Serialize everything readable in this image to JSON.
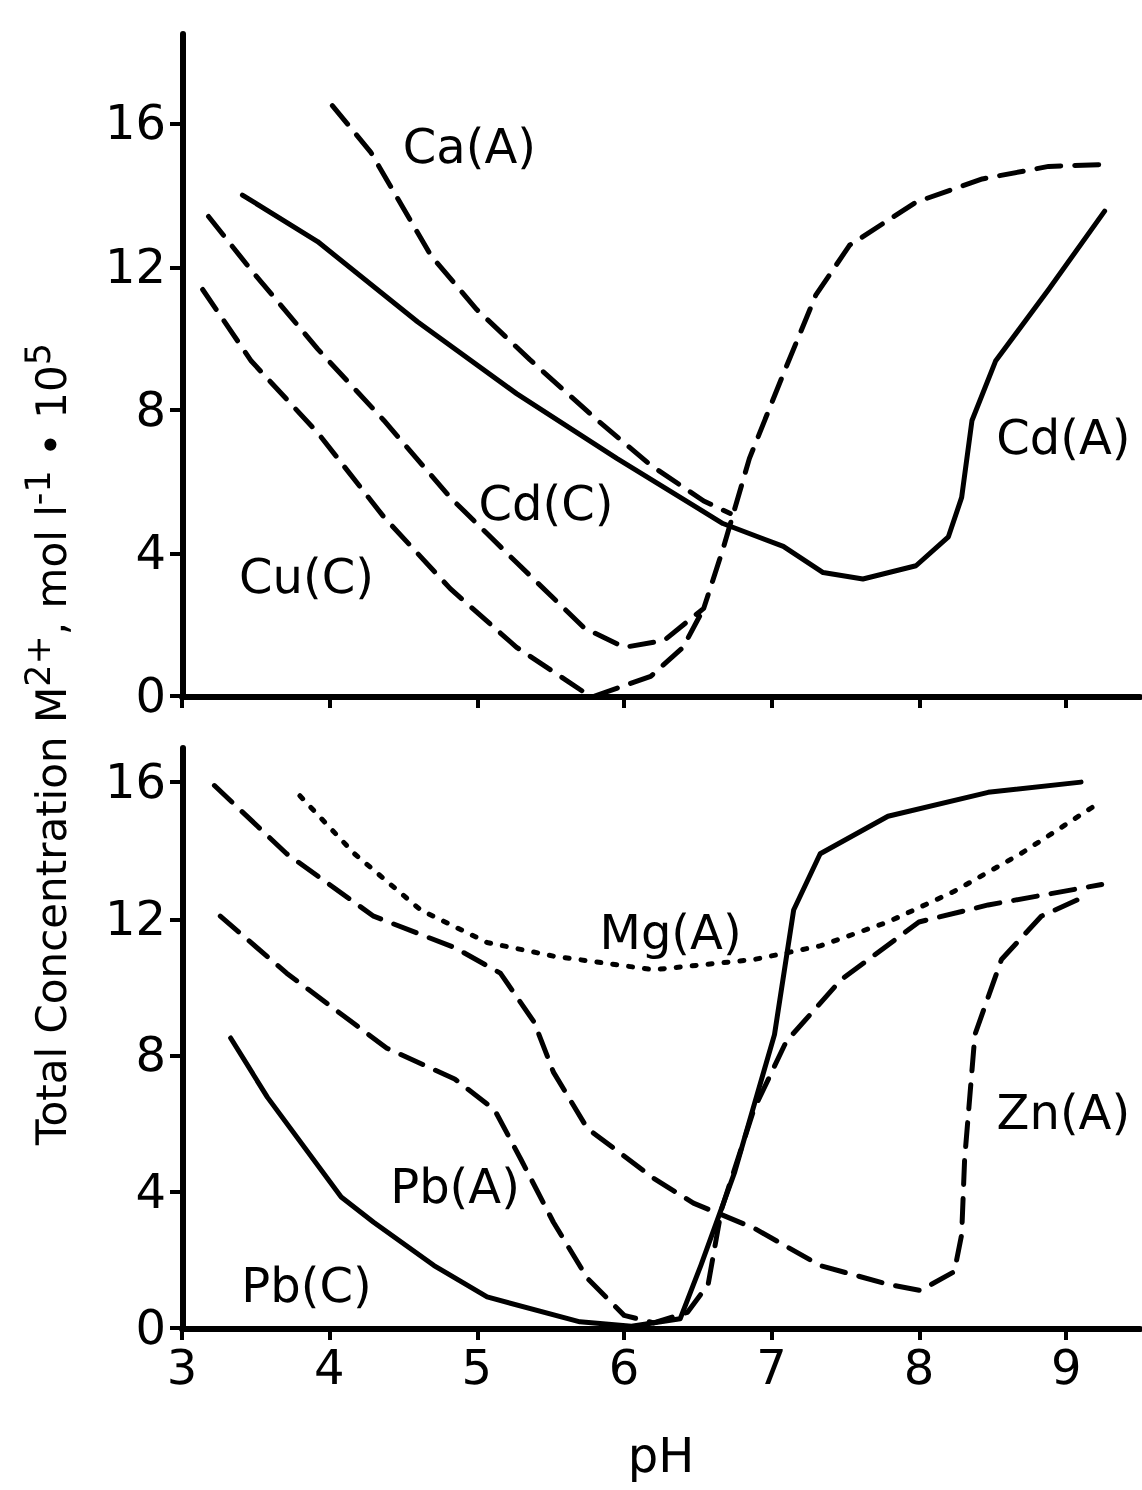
{
  "chart_data": [
    {
      "type": "line",
      "ylabel": "Total Concentration M$^{2+}$, mol l$^{-1}$ • 10$^{5}$",
      "xlim": [
        3,
        9.5
      ],
      "xticks": [
        {
          "value": 3,
          "label": null
        },
        {
          "value": 4,
          "label": null
        },
        {
          "value": 5,
          "label": null
        },
        {
          "value": 6,
          "label": null
        },
        {
          "value": 7,
          "label": null
        },
        {
          "value": 8,
          "label": null
        },
        {
          "value": 9,
          "label": null
        }
      ],
      "ylim": [
        0,
        18.5
      ],
      "yticks": [
        0,
        4,
        8,
        12,
        16
      ],
      "tick_labels": "y",
      "marker": "none",
      "series": [
        {
          "name": "Ca(A)",
          "color": "#000000",
          "line_style": "dashed",
          "x": [
            4.02,
            4.28,
            4.69,
            5.0,
            5.36,
            5.82,
            6.18,
            6.54,
            6.72
          ],
          "values": [
            16.5,
            15.2,
            12.3,
            10.8,
            9.4,
            7.7,
            6.45,
            5.45,
            5.1
          ]
        },
        {
          "name": "Cd(A)",
          "color": "#000000",
          "line_style": "solid",
          "x": [
            3.41,
            3.92,
            4.6,
            5.27,
            5.95,
            6.67,
            7.08,
            7.35,
            7.62,
            7.98,
            8.2,
            8.29,
            8.36,
            8.52,
            8.88,
            9.26
          ],
          "values": [
            14.0,
            12.7,
            10.45,
            8.45,
            6.64,
            4.82,
            4.18,
            3.45,
            3.27,
            3.64,
            4.45,
            5.55,
            7.7,
            9.36,
            11.36,
            13.55
          ]
        },
        {
          "name": "Cd(C)",
          "color": "#000000",
          "line_style": "dashed",
          "x": [
            3.18,
            3.47,
            3.92,
            4.37,
            4.82,
            5.27,
            5.73,
            6.0,
            6.27,
            6.54,
            6.67,
            6.85,
            7.08,
            7.3,
            7.53,
            7.98,
            8.43,
            8.88,
            9.24
          ],
          "values": [
            13.4,
            11.9,
            9.7,
            7.7,
            5.55,
            3.73,
            1.9,
            1.36,
            1.55,
            2.45,
            4.1,
            6.64,
            9.0,
            11.2,
            12.6,
            13.8,
            14.45,
            14.8,
            14.85
          ]
        },
        {
          "name": "Cu(C)",
          "color": "#000000",
          "line_style": "dashed",
          "x": [
            3.14,
            3.47,
            3.92,
            4.37,
            4.82,
            5.27,
            5.73,
            5.8,
            6.18,
            6.4,
            6.54
          ],
          "values": [
            11.36,
            9.36,
            7.36,
            5.0,
            3.0,
            1.36,
            0.1,
            0,
            0.55,
            1.36,
            2.45
          ]
        }
      ]
    },
    {
      "type": "line",
      "xlabel": "pH",
      "xlim": [
        3,
        9.5
      ],
      "xticks": [
        3,
        4,
        5,
        6,
        7,
        8,
        9
      ],
      "ylim": [
        0,
        17
      ],
      "yticks": [
        0,
        4,
        8,
        12,
        16
      ],
      "marker": "none",
      "series": [
        {
          "name": "Mg(A)",
          "color": "#000000",
          "line_style": "dotted",
          "x": [
            3.8,
            4.17,
            4.62,
            5.07,
            5.52,
            6.2,
            6.88,
            7.33,
            7.79,
            8.24,
            8.69,
            9.19
          ],
          "values": [
            15.6,
            13.9,
            12.25,
            11.3,
            10.9,
            10.5,
            10.8,
            11.2,
            11.9,
            12.8,
            13.9,
            15.3
          ]
        },
        {
          "name": "Zn(A)",
          "color": "#000000",
          "line_style": "dashed",
          "x": [
            3.22,
            3.71,
            4.3,
            4.85,
            5.16,
            5.39,
            5.52,
            5.75,
            6.2,
            6.47,
            6.88,
            7.33,
            7.79,
            8.01,
            8.24,
            8.29,
            8.31,
            8.38,
            8.56,
            8.83,
            9.1
          ],
          "values": [
            15.9,
            13.9,
            12.07,
            11.15,
            10.4,
            8.96,
            7.5,
            5.85,
            4.39,
            3.66,
            2.93,
            1.83,
            1.28,
            1.1,
            1.65,
            2.74,
            4.94,
            8.6,
            10.8,
            12.07,
            12.6
          ]
        },
        {
          "name": "Pb(A)",
          "color": "#000000",
          "line_style": "dashed",
          "x": [
            3.26,
            3.71,
            4.39,
            4.85,
            5.12,
            5.3,
            5.52,
            5.75,
            6.0,
            6.2,
            6.43,
            6.57,
            6.66,
            6.88,
            7.1,
            7.47,
            8.0,
            8.47,
            9.24
          ],
          "values": [
            12.07,
            10.4,
            8.2,
            7.3,
            6.4,
            4.94,
            3.1,
            1.46,
            0.37,
            0.15,
            0.46,
            1.28,
            3.47,
            6.4,
            8.4,
            10.2,
            11.9,
            12.4,
            13.0
          ]
        },
        {
          "name": "Pb(C)",
          "color": "#000000",
          "line_style": "solid",
          "x": [
            3.33,
            3.58,
            4.08,
            4.3,
            4.71,
            5.07,
            5.7,
            6.05,
            6.38,
            6.52,
            6.75,
            7.02,
            7.15,
            7.33,
            7.79,
            8.47,
            9.1
          ],
          "values": [
            8.5,
            6.76,
            3.84,
            3.1,
            1.83,
            0.91,
            0.18,
            0.05,
            0.27,
            1.83,
            4.57,
            8.6,
            12.25,
            13.9,
            15.0,
            15.7,
            16.0
          ]
        }
      ]
    }
  ]
}
